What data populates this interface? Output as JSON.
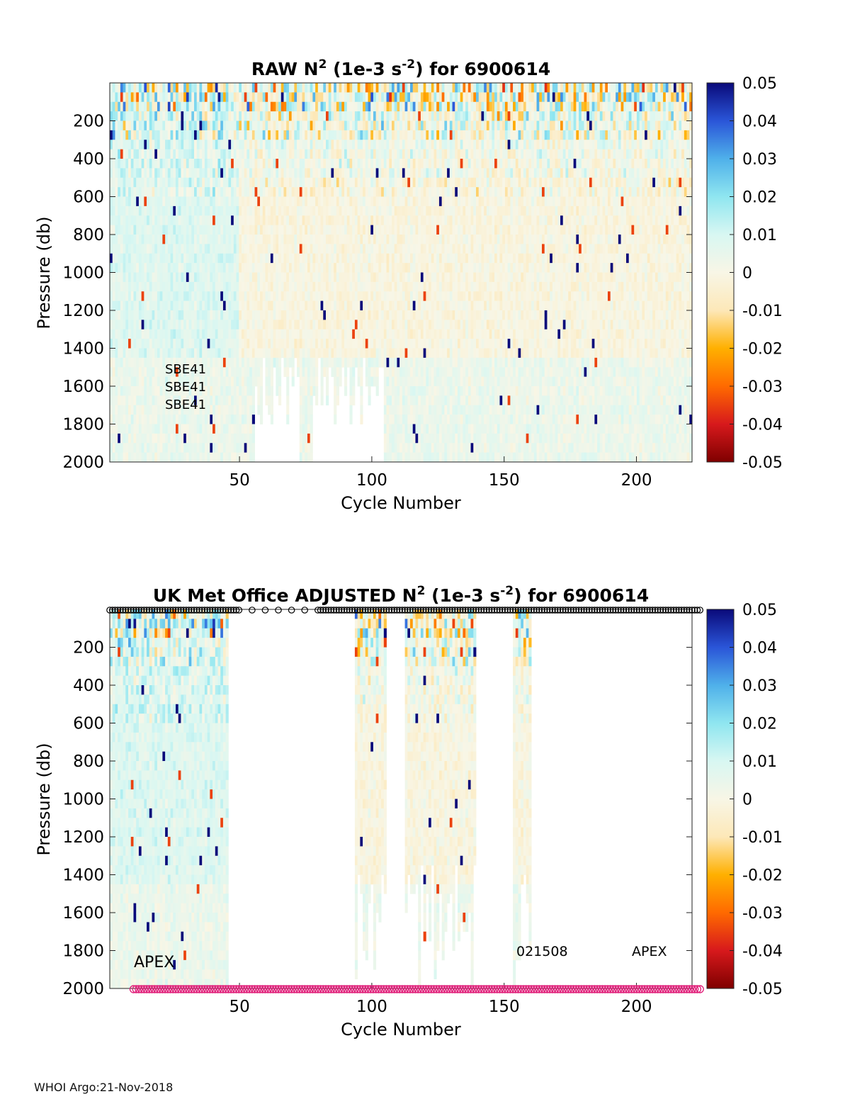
{
  "footer": "WHOI Argo:21-Nov-2018",
  "colorbar": {
    "ticks": [
      "0.05",
      "0.04",
      "0.03",
      "0.02",
      "0.01",
      "0",
      "-0.01",
      "-0.02",
      "-0.03",
      "-0.04",
      "-0.05"
    ],
    "colors": [
      "#7f0000",
      "#d7191c",
      "#ff6a00",
      "#ffb000",
      "#fde8b8",
      "#f8f6e6",
      "#d8f7f2",
      "#8fe6f0",
      "#4fb0ea",
      "#2a55d8",
      "#0a0a7a"
    ]
  },
  "chart_data": [
    {
      "type": "heatmap",
      "title_parts": {
        "a": "RAW N",
        "sup1": "2",
        "b": " (1e-3 s",
        "sup2": "-2",
        "c": ") for 6900614"
      },
      "xlabel": "Cycle Number",
      "ylabel": "Pressure (db)",
      "xlim": [
        1,
        221
      ],
      "ylim": [
        0,
        2000
      ],
      "x_ticks": [
        "50",
        "100",
        "150",
        "200"
      ],
      "y_ticks": [
        "200",
        "400",
        "600",
        "800",
        "1000",
        "1200",
        "1400",
        "1600",
        "1800",
        "2000"
      ],
      "clim": [
        -0.05,
        0.05
      ],
      "annotations": [
        "SBE41",
        "SBE41",
        "SBE41"
      ],
      "gaps_cycles": [
        [
          56,
          72
        ],
        [
          78,
          104
        ]
      ]
    },
    {
      "type": "heatmap",
      "title_parts": {
        "a": "UK Met Office  ADJUSTED N",
        "sup1": "2",
        "b": " (1e-3 s",
        "sup2": "-2",
        "c": ") for 6900614"
      },
      "xlabel": "Cycle Number",
      "ylabel": "Pressure (db)",
      "xlim": [
        1,
        221
      ],
      "ylim": [
        0,
        2000
      ],
      "x_ticks": [
        "50",
        "100",
        "150",
        "200"
      ],
      "y_ticks": [
        "200",
        "400",
        "600",
        "800",
        "1000",
        "1200",
        "1400",
        "1600",
        "1800",
        "2000"
      ],
      "clim": [
        -0.05,
        0.05
      ],
      "data_cycle_ranges": [
        [
          1,
          45
        ],
        [
          94,
          105
        ],
        [
          113,
          139
        ],
        [
          154,
          160
        ]
      ],
      "annotations": [
        "APEX",
        "021508",
        "APEX"
      ],
      "top_marker_color": "#000000",
      "bottom_marker_color": "#e0207a"
    }
  ]
}
